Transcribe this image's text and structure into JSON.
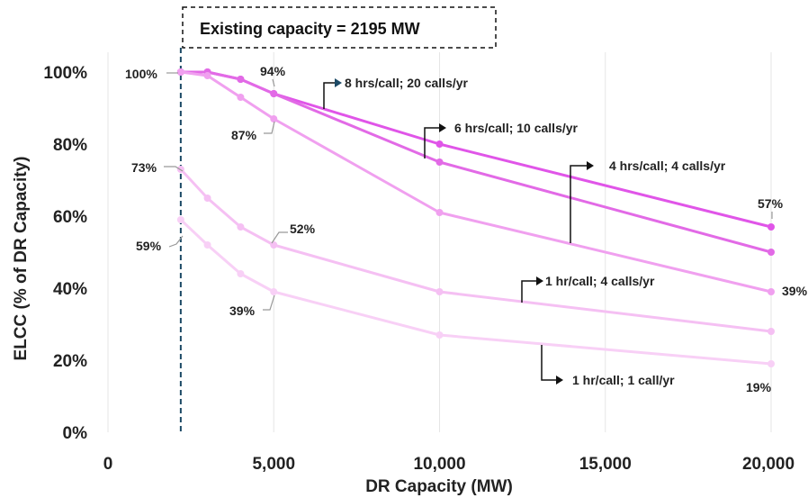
{
  "chart_data": {
    "type": "line",
    "xlabel": "DR Capacity (MW)",
    "ylabel": "ELCC (% of DR Capacity)",
    "xlim": [
      0,
      20000
    ],
    "ylim": [
      0,
      100
    ],
    "x_ticks": [
      "0",
      "5,000",
      "10,000",
      "15,000",
      "20,000"
    ],
    "y_ticks": [
      "0%",
      "20%",
      "40%",
      "60%",
      "80%",
      "100%"
    ],
    "grid": "vertical",
    "annotation": {
      "text": "Existing capacity = 2195 MW",
      "x": 2195
    },
    "series": [
      {
        "name": "8 hrs/call; 20 calls/yr",
        "color": "#e055e8",
        "x": [
          2195,
          3000,
          4000,
          5000,
          10000,
          20000
        ],
        "values": [
          100,
          100,
          98,
          94,
          80,
          57
        ]
      },
      {
        "name": "6 hrs/call; 10 calls/yr",
        "color": "#e26ae6",
        "x": [
          2195,
          3000,
          4000,
          5000,
          10000,
          20000
        ],
        "values": [
          100,
          100,
          98,
          94,
          75,
          50
        ]
      },
      {
        "name": "4 hrs/call; 4 calls/yr",
        "color": "#f0a0ef",
        "x": [
          2195,
          3000,
          4000,
          5000,
          10000,
          20000
        ],
        "values": [
          100,
          99,
          93,
          87,
          61,
          39
        ]
      },
      {
        "name": "1 hr/call; 4 calls/yr",
        "color": "#f5c0f3",
        "x": [
          2195,
          3000,
          4000,
          5000,
          10000,
          20000
        ],
        "values": [
          73,
          65,
          57,
          52,
          39,
          28
        ]
      },
      {
        "name": "1 hr/call; 1 call/yr",
        "color": "#f8d0f6",
        "x": [
          2195,
          3000,
          4000,
          5000,
          10000,
          20000
        ],
        "values": [
          59,
          52,
          44,
          39,
          27,
          19
        ]
      }
    ],
    "data_labels": [
      "100%",
      "94%",
      "87%",
      "73%",
      "52%",
      "59%",
      "39%",
      "57%",
      "39%",
      "19%"
    ]
  }
}
